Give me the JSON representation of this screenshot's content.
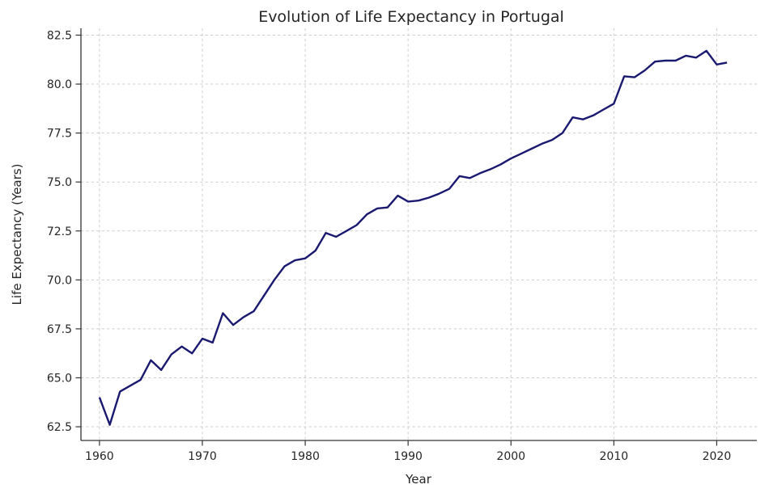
{
  "chart_data": {
    "type": "line",
    "title": "Evolution of Life Expectancy in Portugal",
    "xlabel": "Year",
    "ylabel": "Life Expectancy (Years)",
    "series_name": "Life expectancy",
    "x": [
      1960,
      1961,
      1962,
      1963,
      1964,
      1965,
      1966,
      1967,
      1968,
      1969,
      1970,
      1971,
      1972,
      1973,
      1974,
      1975,
      1976,
      1977,
      1978,
      1979,
      1980,
      1981,
      1982,
      1983,
      1984,
      1985,
      1986,
      1987,
      1988,
      1989,
      1990,
      1991,
      1992,
      1993,
      1994,
      1995,
      1996,
      1997,
      1998,
      1999,
      2000,
      2001,
      2002,
      2003,
      2004,
      2005,
      2006,
      2007,
      2008,
      2009,
      2010,
      2011,
      2012,
      2013,
      2014,
      2015,
      2016,
      2017,
      2018,
      2019,
      2020,
      2021
    ],
    "values": [
      64.0,
      62.6,
      64.3,
      64.6,
      64.9,
      65.9,
      65.4,
      66.2,
      66.6,
      66.25,
      67.0,
      66.8,
      68.3,
      67.7,
      68.1,
      68.4,
      69.2,
      70.0,
      70.7,
      71.0,
      71.1,
      71.5,
      72.4,
      72.2,
      72.5,
      72.8,
      73.35,
      73.65,
      73.7,
      74.3,
      74.0,
      74.05,
      74.2,
      74.4,
      74.65,
      75.3,
      75.2,
      75.45,
      75.65,
      75.9,
      76.2,
      76.45,
      76.7,
      76.95,
      77.15,
      77.5,
      78.3,
      78.2,
      78.4,
      78.7,
      79.0,
      80.4,
      80.35,
      80.7,
      81.15,
      81.2,
      81.2,
      81.45,
      81.35,
      81.7,
      81.0,
      81.1
    ],
    "xticks": [
      1960,
      1970,
      1980,
      1990,
      2000,
      2010,
      2020
    ],
    "yticks": [
      62.5,
      65.0,
      67.5,
      70.0,
      72.5,
      75.0,
      77.5,
      80.0,
      82.5
    ],
    "ytick_labels": [
      "62.5",
      "65.0",
      "67.5",
      "70.0",
      "72.5",
      "75.0",
      "77.5",
      "80.0",
      "82.5"
    ],
    "xlim": [
      1958.2,
      2023.9
    ],
    "ylim": [
      61.8,
      82.85
    ],
    "grid": true,
    "grid_style": "dashed",
    "legend_position": "none",
    "line_color": "#191970",
    "text_color": "#262626",
    "grid_color": "#cccccc",
    "spine_color": "#333333",
    "background_color": "#ffffff"
  }
}
